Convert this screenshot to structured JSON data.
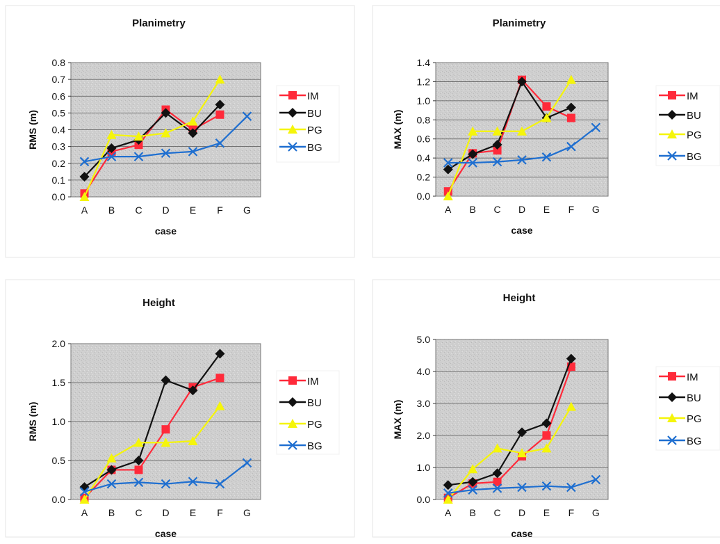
{
  "series_styles": [
    {
      "name": "IM",
      "color": "#ff2a3a",
      "marker": "square"
    },
    {
      "name": "BU",
      "color": "#111111",
      "marker": "diamond"
    },
    {
      "name": "PG",
      "color": "#f5f50a",
      "marker": "triangle"
    },
    {
      "name": "BG",
      "color": "#1f6fd0",
      "marker": "x"
    }
  ],
  "chart_data": [
    {
      "type": "line",
      "title": "Planimetry",
      "xlabel": "case",
      "ylabel": "RMS (m)",
      "categories": [
        "A",
        "B",
        "C",
        "D",
        "E",
        "F",
        "G"
      ],
      "ylim": [
        0,
        0.8
      ],
      "yticks": [
        "0.0",
        "0.1",
        "0.2",
        "0.3",
        "0.4",
        "0.5",
        "0.6",
        "0.7",
        "0.8"
      ],
      "grid": true,
      "legend_position": "right",
      "series": [
        {
          "name": "IM",
          "values": [
            0.02,
            0.27,
            0.31,
            0.52,
            0.4,
            0.49,
            null
          ]
        },
        {
          "name": "BU",
          "values": [
            0.12,
            0.29,
            0.34,
            0.5,
            0.38,
            0.55,
            null
          ]
        },
        {
          "name": "PG",
          "values": [
            0.0,
            0.37,
            0.36,
            0.38,
            0.45,
            0.7,
            null
          ]
        },
        {
          "name": "BG",
          "values": [
            0.21,
            0.24,
            0.24,
            0.26,
            0.27,
            0.32,
            0.48
          ]
        }
      ]
    },
    {
      "type": "line",
      "title": "Planimetry",
      "xlabel": "case",
      "ylabel": "MAX (m)",
      "categories": [
        "A",
        "B",
        "C",
        "D",
        "E",
        "F",
        "G"
      ],
      "ylim": [
        0,
        1.4
      ],
      "yticks": [
        "0.0",
        "0.2",
        "0.4",
        "0.6",
        "0.8",
        "1.0",
        "1.2",
        "1.4"
      ],
      "grid": true,
      "legend_position": "right",
      "series": [
        {
          "name": "IM",
          "values": [
            0.05,
            0.45,
            0.48,
            1.22,
            0.94,
            0.82,
            null
          ]
        },
        {
          "name": "BU",
          "values": [
            0.28,
            0.44,
            0.54,
            1.2,
            0.82,
            0.93,
            null
          ]
        },
        {
          "name": "PG",
          "values": [
            0.0,
            0.68,
            0.68,
            0.68,
            0.82,
            1.22,
            null
          ]
        },
        {
          "name": "BG",
          "values": [
            0.35,
            0.35,
            0.36,
            0.38,
            0.41,
            0.52,
            0.72
          ]
        }
      ]
    },
    {
      "type": "line",
      "title": "Height",
      "xlabel": "case",
      "ylabel": "RMS (m)",
      "categories": [
        "A",
        "B",
        "C",
        "D",
        "E",
        "F",
        "G"
      ],
      "ylim": [
        0,
        2.0
      ],
      "yticks": [
        "0.0",
        "0.5",
        "1.0",
        "1.5",
        "2.0"
      ],
      "grid": true,
      "legend_position": "right",
      "series": [
        {
          "name": "IM",
          "values": [
            0.02,
            0.38,
            0.38,
            0.9,
            1.44,
            1.56,
            null
          ]
        },
        {
          "name": "BU",
          "values": [
            0.16,
            0.38,
            0.5,
            1.53,
            1.4,
            1.87,
            null
          ]
        },
        {
          "name": "PG",
          "values": [
            0.0,
            0.53,
            0.73,
            0.73,
            0.75,
            1.2,
            null
          ]
        },
        {
          "name": "BG",
          "values": [
            0.1,
            0.2,
            0.22,
            0.2,
            0.23,
            0.2,
            0.47
          ]
        }
      ]
    },
    {
      "type": "line",
      "title": "Height",
      "xlabel": "case",
      "ylabel": "MAX (m)",
      "categories": [
        "A",
        "B",
        "C",
        "D",
        "E",
        "F",
        "G"
      ],
      "ylim": [
        0,
        5.0
      ],
      "yticks": [
        "0.0",
        "1.0",
        "2.0",
        "3.0",
        "4.0",
        "5.0"
      ],
      "grid": true,
      "legend_position": "right",
      "series": [
        {
          "name": "IM",
          "values": [
            0.05,
            0.5,
            0.55,
            1.35,
            2.0,
            4.15,
            null
          ]
        },
        {
          "name": "BU",
          "values": [
            0.45,
            0.55,
            0.82,
            2.1,
            2.38,
            4.4,
            null
          ]
        },
        {
          "name": "PG",
          "values": [
            0.0,
            0.95,
            1.6,
            1.45,
            1.6,
            2.9,
            null
          ]
        },
        {
          "name": "BG",
          "values": [
            0.2,
            0.3,
            0.35,
            0.38,
            0.42,
            0.38,
            0.62
          ]
        }
      ]
    }
  ]
}
